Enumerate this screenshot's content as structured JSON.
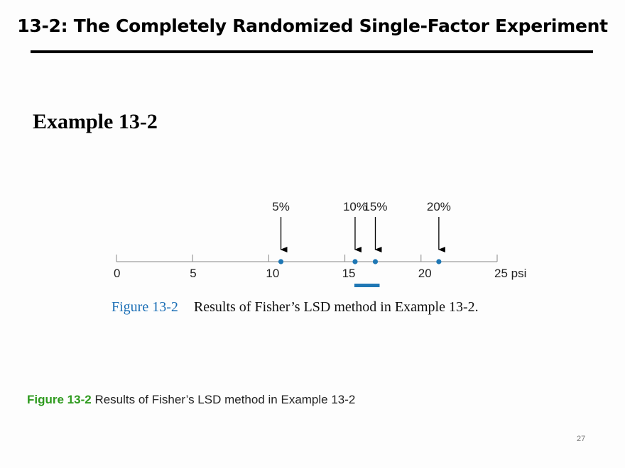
{
  "slide": {
    "title": "13-2: The Completely Randomized Single-Factor Experiment",
    "example_heading": "Example 13-2",
    "caption_label": "Figure 13-2",
    "caption_text": "Results of Fisher’s LSD method in Example 13-2",
    "page_number": "27"
  },
  "figure": {
    "caption_label": "Figure 13-2",
    "caption_text": "Results of Fisher’s LSD method in Example 13-2.",
    "colors": {
      "point": "#1f77b4",
      "bar": "#1f77b4",
      "axis": "#888888",
      "arrow": "#000000"
    }
  },
  "chart_data": {
    "type": "scatter",
    "axis_unit": "psi",
    "tick_labels": [
      "0",
      "5",
      "10",
      "15",
      "20",
      "25 psi"
    ],
    "ticks": [
      0,
      5,
      10,
      15,
      20,
      25
    ],
    "xlim": [
      0,
      25
    ],
    "points": [
      {
        "label": "5%",
        "x": 10.8
      },
      {
        "label": "10%",
        "x": 15.67
      },
      {
        "label": "15%",
        "x": 17.0
      },
      {
        "label": "20%",
        "x": 21.17
      }
    ],
    "grouping_bars": [
      {
        "from": 15.67,
        "to": 17.0
      }
    ]
  }
}
